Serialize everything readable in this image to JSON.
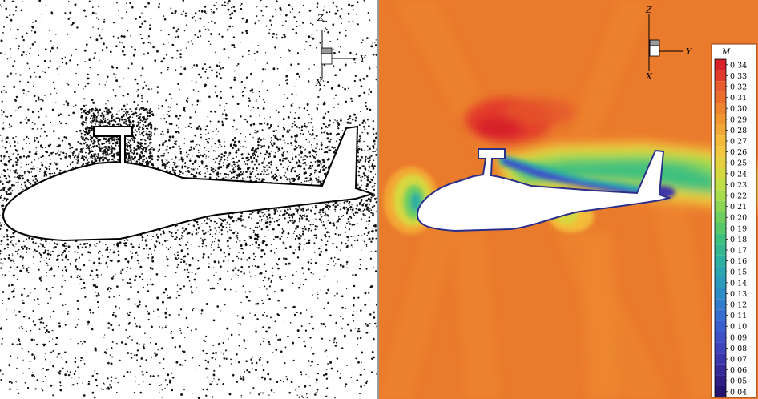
{
  "left_panel": {
    "axis": {
      "z": "Z",
      "y": "Y",
      "x": "X"
    }
  },
  "right_panel": {
    "axis": {
      "z": "Z",
      "y": "Y",
      "x": "X"
    },
    "legend": {
      "title": "M",
      "ticks": [
        "0.34",
        "0.33",
        "0.32",
        "0.31",
        "0.30",
        "0.29",
        "0.28",
        "0.27",
        "0.26",
        "0.25",
        "0.24",
        "0.23",
        "0.22",
        "0.21",
        "0.20",
        "0.19",
        "0.18",
        "0.17",
        "0.16",
        "0.15",
        "0.14",
        "0.13",
        "0.12",
        "0.11",
        "0.10",
        "0.09",
        "0.08",
        "0.07",
        "0.06",
        "0.05",
        "0.04"
      ],
      "colors": [
        "#d8202a",
        "#e03a2a",
        "#e65a2b",
        "#ea6d2c",
        "#ee842d",
        "#f1952e",
        "#f3a834",
        "#f4bb3a",
        "#f0c73e",
        "#e5d140",
        "#d6d83f",
        "#c0de45",
        "#a6dd4b",
        "#8ad654",
        "#6ecf5e",
        "#54c86b",
        "#40c07e",
        "#35b88f",
        "#2eb0a0",
        "#2ba6b0",
        "#2c9abd",
        "#2e8cc5",
        "#327dcb",
        "#376ecf",
        "#3b5fcf",
        "#3e51c8",
        "#3f43bc",
        "#3c36ab",
        "#362a98",
        "#2e1f84",
        "#241670"
      ]
    }
  }
}
